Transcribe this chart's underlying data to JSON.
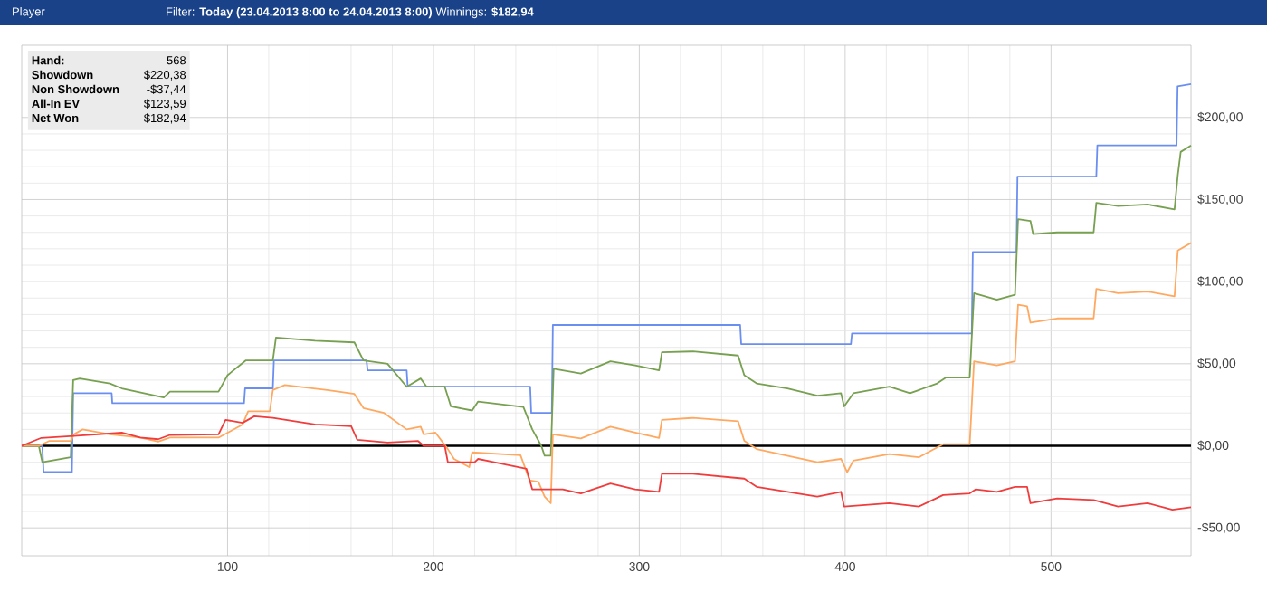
{
  "chart_data": {
    "type": "line",
    "title": "Player",
    "subtitle": "Filter: **Today (23.04.2013 8:00 to 24.04.2013 8:00)** Winnings: **$182,94**",
    "annotations": [
      "Hand:",
      "568",
      "Showdown",
      "$220,38",
      "Non Showdown",
      "-$37,44",
      "All-In EV",
      "$123,59",
      "Net Won",
      "$182,94"
    ],
    "xlim": [
      0,
      568
    ],
    "xticks": [
      100,
      200,
      300,
      400,
      500
    ],
    "ylim": [
      -67,
      244
    ],
    "yticks": [
      {
        "value": -50,
        "label": "-$50,00"
      },
      {
        "value": 0,
        "label": "$0,00"
      },
      {
        "value": 50,
        "label": "$50,00"
      },
      {
        "value": 100,
        "label": "$100,00"
      },
      {
        "value": 150,
        "label": "$150,00"
      },
      {
        "value": 200,
        "label": "$200,00"
      }
    ],
    "grid": true,
    "line_style": "solid",
    "ref_lines": [
      {
        "axis": "y",
        "value": 0,
        "color": "#000000"
      }
    ],
    "series": [
      {
        "color": "#6b8ff0",
        "x": [
          0,
          10,
          10.6,
          24.4,
          25,
          43.7,
          44,
          108,
          108.5,
          122,
          122.5,
          167.5,
          168,
          187,
          187.5,
          247,
          247.5,
          257.5,
          258,
          349,
          349.5,
          402.8,
          403.3,
          461.5,
          462,
          483.2,
          483.7,
          522,
          522.5,
          561,
          561.5,
          568
        ],
        "values": [
          0,
          0,
          -16,
          -16,
          32,
          32,
          26,
          26,
          35,
          35,
          52,
          52,
          46,
          46,
          36,
          36,
          20,
          20,
          73.6,
          73.6,
          62,
          62,
          68.4,
          68.4,
          118,
          118,
          164,
          164,
          183,
          183,
          219,
          220.38
        ]
      },
      {
        "color": "#77a050",
        "x": [
          0,
          8.3,
          10,
          23.8,
          25,
          28.2,
          42.8,
          48.6,
          69,
          72,
          95.6,
          100,
          108.8,
          122,
          123.5,
          142.5,
          161.6,
          166,
          177.7,
          187,
          193.8,
          196.7,
          205.5,
          208.5,
          218.8,
          221.7,
          243.7,
          248,
          252.4,
          254,
          257,
          258.4,
          271.6,
          286,
          298,
          309.6,
          311,
          326,
          348,
          351,
          357,
          372,
          386.5,
          398,
          399.5,
          404,
          421.5,
          431.5,
          444.7,
          449,
          460.5,
          462.6,
          473.7,
          482.5,
          484,
          490,
          491.3,
          503,
          520.7,
          522,
          532.6,
          547,
          560,
          561.6,
          563,
          568
        ],
        "values": [
          0,
          0,
          -10,
          -7,
          40,
          41,
          38,
          35,
          29.4,
          33,
          33,
          43,
          52,
          52,
          66,
          64,
          63,
          52,
          50,
          36,
          41,
          36,
          36,
          24,
          21.5,
          27,
          23.6,
          10,
          0,
          -6,
          -6,
          47,
          44,
          51.5,
          49,
          46,
          57,
          57.5,
          55,
          43,
          38,
          35,
          30.5,
          32,
          24,
          32,
          36,
          32,
          38,
          41.6,
          41.6,
          93,
          89,
          92,
          138,
          137,
          129,
          130,
          130,
          148,
          146,
          147,
          144,
          165,
          179,
          182.94
        ]
      },
      {
        "color": "#ffa860",
        "x": [
          0,
          8.3,
          13.5,
          24,
          25.3,
          29.6,
          42.8,
          57.5,
          66.3,
          72,
          95.6,
          101.5,
          107.3,
          110,
          120.5,
          122,
          127.8,
          148.4,
          161.6,
          166,
          176,
          187,
          193.8,
          195.3,
          201,
          207,
          210,
          217.4,
          218.8,
          242.3,
          246.7,
          251,
          254,
          257,
          258,
          271.6,
          286,
          298,
          309.6,
          311,
          326,
          348,
          351,
          357,
          386.5,
          398,
          401,
          404,
          421.5,
          435.8,
          447.6,
          460.5,
          462.6,
          473.7,
          482.5,
          484,
          488.4,
          490,
          503,
          520.7,
          522,
          532.6,
          547,
          560,
          561.6,
          568
        ],
        "values": [
          0,
          0,
          3,
          3,
          7,
          10,
          7,
          5,
          2.6,
          5,
          5,
          9,
          13,
          21,
          21,
          34,
          37,
          34,
          31.6,
          23,
          20,
          10,
          11.6,
          7,
          8,
          -2,
          -8,
          -13,
          -4,
          -5.7,
          -21,
          -22,
          -31,
          -35,
          7,
          4.5,
          11.6,
          8,
          4.8,
          15.8,
          17,
          15,
          3,
          -2,
          -10,
          -8,
          -16,
          -9,
          -5,
          -7,
          1,
          1,
          51.5,
          49,
          51.5,
          86,
          85,
          75,
          77.6,
          77.6,
          95.6,
          93,
          94,
          91,
          119,
          123.59
        ]
      },
      {
        "color": "#f03c3c",
        "x": [
          0,
          9.5,
          25.3,
          48.6,
          57.5,
          66.3,
          72,
          95.6,
          99,
          107.3,
          113,
          122,
          142.5,
          160,
          163,
          177.7,
          192.4,
          195.3,
          205.5,
          207,
          220,
          221.7,
          245.2,
          248,
          262.8,
          271.6,
          286,
          298,
          309.6,
          311,
          326,
          351,
          357,
          386.5,
          398,
          399.5,
          421.5,
          435.8,
          447.6,
          460.5,
          463.5,
          473.7,
          482.5,
          488.4,
          490,
          503,
          520.7,
          532.6,
          547,
          559,
          568
        ],
        "values": [
          0,
          4.8,
          6,
          8,
          5,
          4,
          6.6,
          7,
          15.8,
          14,
          18,
          17,
          13,
          12,
          3.6,
          2,
          3,
          0,
          0,
          -10,
          -10,
          -8,
          -14,
          -26.5,
          -26.5,
          -29,
          -23,
          -26.5,
          -28,
          -17,
          -17,
          -20,
          -25,
          -31,
          -28,
          -37,
          -35,
          -37,
          -30,
          -29,
          -26.5,
          -28,
          -25,
          -25,
          -35,
          -32,
          -33,
          -37,
          -35,
          -39,
          -37.44
        ]
      }
    ]
  }
}
